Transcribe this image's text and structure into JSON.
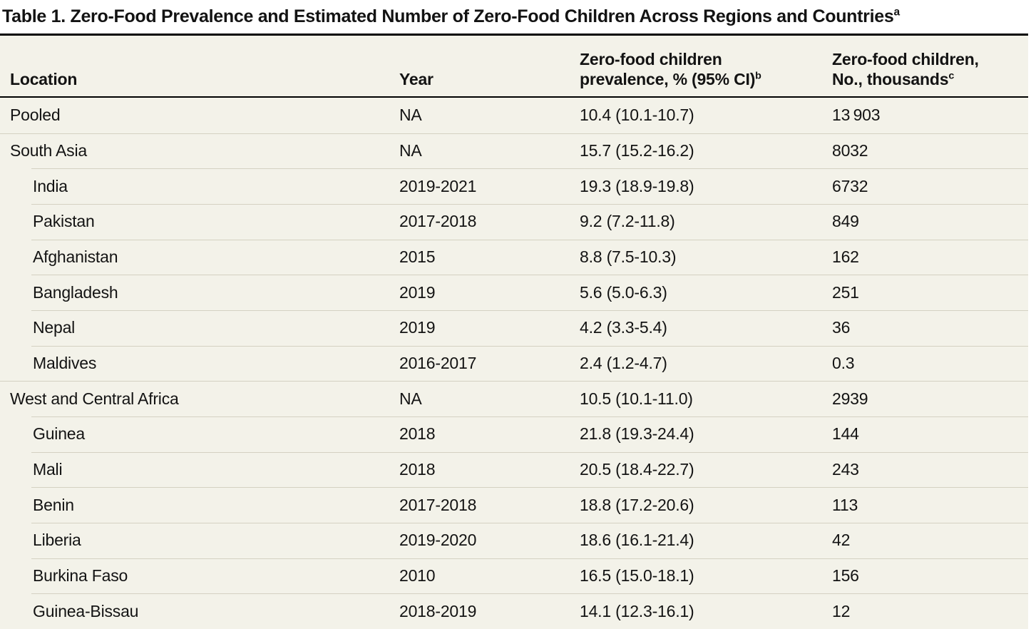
{
  "title": {
    "text": "Table 1. Zero-Food Prevalence and Estimated Number of Zero-Food Children Across Regions and Countries",
    "sup": "a"
  },
  "table": {
    "columns": {
      "location": "Location",
      "year": "Year",
      "prevalence_line1": "Zero-food children",
      "prevalence_line2": "prevalence, % (95% CI)",
      "prevalence_sup": "b",
      "number_line1": "Zero-food children,",
      "number_line2": "No., thousands",
      "number_sup": "c"
    },
    "rows": [
      {
        "location": "Pooled",
        "year": "NA",
        "prevalence": "10.4 (10.1-10.7)",
        "number": "13 903"
      },
      {
        "location": "South Asia",
        "year": "NA",
        "prevalence": "15.7 (15.2-16.2)",
        "number": "8032"
      },
      {
        "location": "India",
        "year": "2019-2021",
        "prevalence": "19.3 (18.9-19.8)",
        "number": "6732"
      },
      {
        "location": "Pakistan",
        "year": "2017-2018",
        "prevalence": "9.2 (7.2-11.8)",
        "number": "849"
      },
      {
        "location": "Afghanistan",
        "year": "2015",
        "prevalence": "8.8 (7.5-10.3)",
        "number": "162"
      },
      {
        "location": "Bangladesh",
        "year": "2019",
        "prevalence": "5.6 (5.0-6.3)",
        "number": "251"
      },
      {
        "location": "Nepal",
        "year": "2019",
        "prevalence": "4.2 (3.3-5.4)",
        "number": "36"
      },
      {
        "location": "Maldives",
        "year": "2016-2017",
        "prevalence": "2.4 (1.2-4.7)",
        "number": "0.3"
      },
      {
        "location": "West and Central Africa",
        "year": "NA",
        "prevalence": "10.5 (10.1-11.0)",
        "number": "2939"
      },
      {
        "location": "Guinea",
        "year": "2018",
        "prevalence": "21.8 (19.3-24.4)",
        "number": "144"
      },
      {
        "location": "Mali",
        "year": "2018",
        "prevalence": "20.5 (18.4-22.7)",
        "number": "243"
      },
      {
        "location": "Benin",
        "year": "2017-2018",
        "prevalence": "18.8 (17.2-20.6)",
        "number": "113"
      },
      {
        "location": "Liberia",
        "year": "2019-2020",
        "prevalence": "18.6 (16.1-21.4)",
        "number": "42"
      },
      {
        "location": "Burkina Faso",
        "year": "2010",
        "prevalence": "16.5 (15.0-18.1)",
        "number": "156"
      },
      {
        "location": "Guinea-Bissau",
        "year": "2018-2019",
        "prevalence": "14.1 (12.3-16.1)",
        "number": "12"
      }
    ]
  }
}
